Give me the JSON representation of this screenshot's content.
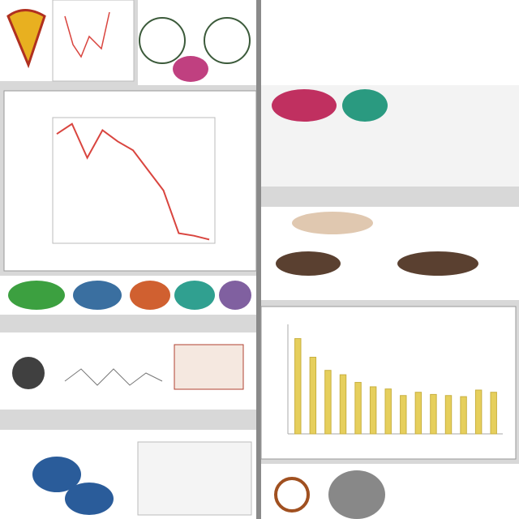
{
  "chart_data": [
    {
      "type": "line",
      "color": "#d9453f",
      "values": [
        87,
        95,
        68,
        90,
        81,
        74,
        58,
        42,
        8,
        6,
        3
      ],
      "ylim": [
        0,
        100
      ]
    },
    {
      "type": "bar",
      "color": "#e6cf5c",
      "values": [
        87,
        70,
        58,
        54,
        47,
        43,
        41,
        35,
        38,
        36,
        35,
        34,
        40,
        38
      ],
      "ylim": [
        0,
        100
      ]
    }
  ]
}
